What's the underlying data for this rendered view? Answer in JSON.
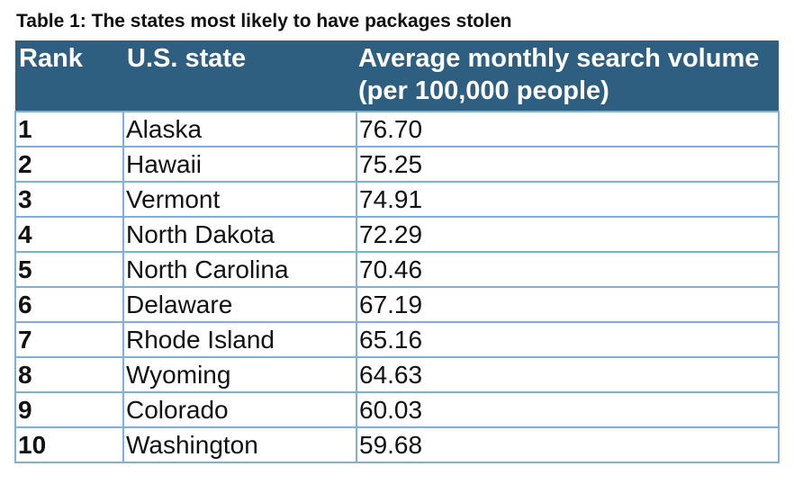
{
  "caption": "Table 1: The states most likely to have packages stolen",
  "colors": {
    "header_bg": "#2f5f80",
    "header_text": "#ffffff",
    "border": "#7eb1d9"
  },
  "table": {
    "headers": [
      "Rank",
      "U.S. state",
      "Average monthly search volume (per 100,000 people)"
    ],
    "rows": [
      {
        "rank": "1",
        "state": "Alaska",
        "volume": "76.70"
      },
      {
        "rank": "2",
        "state": "Hawaii",
        "volume": "75.25"
      },
      {
        "rank": "3",
        "state": "Vermont",
        "volume": "74.91"
      },
      {
        "rank": "4",
        "state": "North Dakota",
        "volume": "72.29"
      },
      {
        "rank": "5",
        "state": "North Carolina",
        "volume": "70.46"
      },
      {
        "rank": "6",
        "state": "Delaware",
        "volume": "67.19"
      },
      {
        "rank": "7",
        "state": "Rhode Island",
        "volume": "65.16"
      },
      {
        "rank": "8",
        "state": "Wyoming",
        "volume": "64.63"
      },
      {
        "rank": "9",
        "state": "Colorado",
        "volume": "60.03"
      },
      {
        "rank": "10",
        "state": "Washington",
        "volume": "59.68"
      }
    ]
  }
}
